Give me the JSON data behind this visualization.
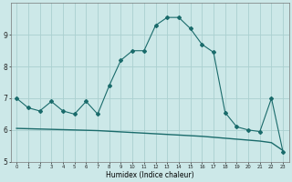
{
  "xlabel": "Humidex (Indice chaleur)",
  "bg_color": "#cce8e8",
  "grid_color": "#aad0d0",
  "line_color": "#1a6b6b",
  "x_values": [
    0,
    1,
    2,
    3,
    4,
    5,
    6,
    7,
    8,
    9,
    10,
    11,
    12,
    13,
    14,
    15,
    16,
    17,
    18,
    19,
    20,
    21,
    22,
    23
  ],
  "y_curve": [
    7.0,
    6.7,
    6.6,
    6.9,
    6.6,
    6.5,
    6.9,
    6.5,
    7.4,
    8.2,
    8.5,
    8.5,
    9.3,
    9.55,
    9.55,
    9.2,
    8.7,
    8.45,
    6.55,
    6.1,
    6.0,
    5.95,
    7.0,
    5.3
  ],
  "y_linear": [
    6.05,
    6.04,
    6.03,
    6.02,
    6.01,
    6.0,
    5.99,
    5.98,
    5.96,
    5.94,
    5.92,
    5.9,
    5.88,
    5.86,
    5.84,
    5.82,
    5.8,
    5.77,
    5.74,
    5.71,
    5.68,
    5.65,
    5.6,
    5.35
  ],
  "ylim": [
    5.0,
    10.0
  ],
  "xlim": [
    -0.5,
    23.5
  ],
  "yticks": [
    5,
    6,
    7,
    8,
    9
  ],
  "xtick_labels": [
    "0",
    "1",
    "2",
    "3",
    "4",
    "5",
    "6",
    "7",
    "8",
    "9",
    "10",
    "11",
    "12",
    "13",
    "14",
    "15",
    "16",
    "17",
    "18",
    "19",
    "20",
    "21",
    "22",
    "23"
  ]
}
